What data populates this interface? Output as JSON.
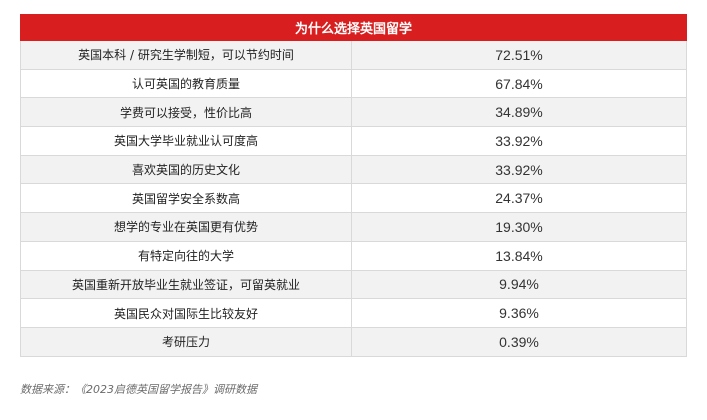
{
  "table": {
    "title": "为什么选择英国留学",
    "rows": [
      {
        "reason": "英国本科 / 研究生学制短，可以节约时间",
        "percent": "72.51%"
      },
      {
        "reason": "认可英国的教育质量",
        "percent": "67.84%"
      },
      {
        "reason": "学费可以接受，性价比高",
        "percent": "34.89%"
      },
      {
        "reason": "英国大学毕业就业认可度高",
        "percent": "33.92%"
      },
      {
        "reason": "喜欢英国的历史文化",
        "percent": "33.92%"
      },
      {
        "reason": "英国留学安全系数高",
        "percent": "24.37%"
      },
      {
        "reason": "想学的专业在英国更有优势",
        "percent": "19.30%"
      },
      {
        "reason": "有特定向往的大学",
        "percent": "13.84%"
      },
      {
        "reason": "英国重新开放毕业生就业签证，可留英就业",
        "percent": "9.94%"
      },
      {
        "reason": "英国民众对国际生比较友好",
        "percent": "9.36%"
      },
      {
        "reason": "考研压力",
        "percent": "0.39%"
      }
    ]
  },
  "source": "数据来源：《2023启德英国留学报告》调研数据",
  "colors": {
    "header_bg": "#d81e1e",
    "header_text": "#ffffff",
    "shaded_row": "#f2f2f2",
    "grid_line": "#d9d9d9"
  }
}
